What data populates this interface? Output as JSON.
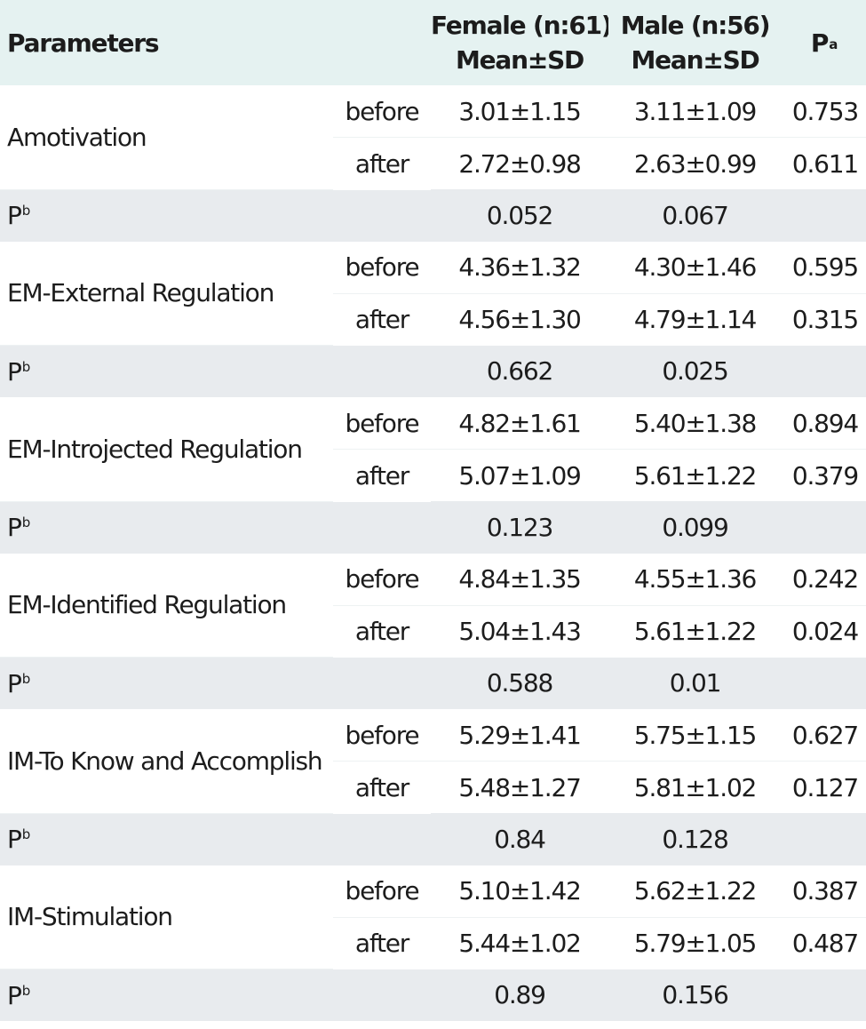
{
  "header": {
    "parameters": "Parameters",
    "female_line1": "Female (n:61)",
    "female_line2": "Mean±SD",
    "male_line1": "Male (n:56)",
    "male_line2": "Mean±SD",
    "pa": "P",
    "pa_sup": "a"
  },
  "pb_label": "P",
  "pb_sup": "b",
  "groups": [
    {
      "name": "Amotivation",
      "before": {
        "label": "before",
        "female": "3.01±1.15",
        "male": "3.11±1.09",
        "pa": "0.753"
      },
      "after": {
        "label": "after",
        "female": "2.72±0.98",
        "male": "2.63±0.99",
        "pa": "0.611"
      },
      "pb": {
        "female": "0.052",
        "male": "0.067"
      }
    },
    {
      "name": "EM-External Regulation",
      "before": {
        "label": "before",
        "female": "4.36±1.32",
        "male": "4.30±1.46",
        "pa": "0.595"
      },
      "after": {
        "label": "after",
        "female": "4.56±1.30",
        "male": "4.79±1.14",
        "pa": "0.315"
      },
      "pb": {
        "female": "0.662",
        "male": "0.025"
      }
    },
    {
      "name": "EM-Introjected Regulation",
      "before": {
        "label": "before",
        "female": "4.82±1.61",
        "male": "5.40±1.38",
        "pa": "0.894"
      },
      "after": {
        "label": "after",
        "female": "5.07±1.09",
        "male": "5.61±1.22",
        "pa": "0.379"
      },
      "pb": {
        "female": "0.123",
        "male": "0.099"
      }
    },
    {
      "name": "EM-Identified Regulation",
      "before": {
        "label": "before",
        "female": "4.84±1.35",
        "male": "4.55±1.36",
        "pa": "0.242"
      },
      "after": {
        "label": "after",
        "female": "5.04±1.43",
        "male": "5.61±1.22",
        "pa": "0.024"
      },
      "pb": {
        "female": "0.588",
        "male": "0.01"
      }
    },
    {
      "name": "IM-To Know and Accomplish",
      "before": {
        "label": "before",
        "female": "5.29±1.41",
        "male": "5.75±1.15",
        "pa": "0.627"
      },
      "after": {
        "label": "after",
        "female": "5.48±1.27",
        "male": "5.81±1.02",
        "pa": "0.127"
      },
      "pb": {
        "female": "0.84",
        "male": "0.128"
      }
    },
    {
      "name": "IM-Stimulation",
      "before": {
        "label": "before",
        "female": "5.10±1.42",
        "male": "5.62±1.22",
        "pa": "0.387"
      },
      "after": {
        "label": "after",
        "female": "5.44±1.02",
        "male": "5.79±1.05",
        "pa": "0.487"
      },
      "pb": {
        "female": "0.89",
        "male": "0.156"
      }
    }
  ]
}
